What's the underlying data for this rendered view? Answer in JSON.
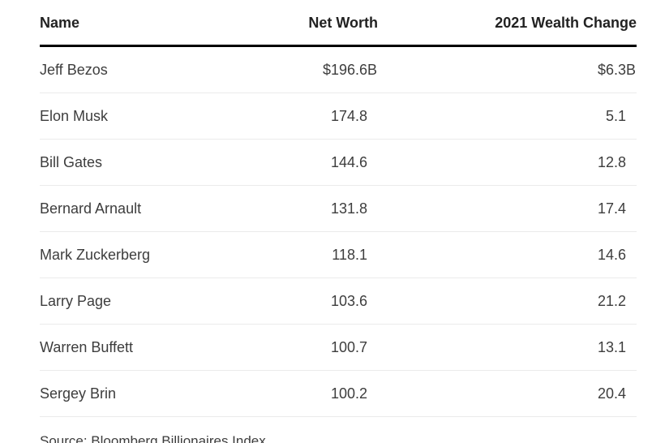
{
  "chart_data": {
    "type": "table",
    "title": "",
    "columns": [
      "Name",
      "Net Worth",
      "2021 Wealth Change"
    ],
    "rows": [
      {
        "name": "Jeff Bezos",
        "net_worth_prefix": "$",
        "net_worth": "196.6",
        "net_worth_suffix": "B",
        "change_prefix": "$",
        "change": "6.3",
        "change_suffix": "B"
      },
      {
        "name": "Elon Musk",
        "net_worth_prefix": "",
        "net_worth": "174.8",
        "net_worth_suffix": "",
        "change_prefix": "",
        "change": "5.1",
        "change_suffix": ""
      },
      {
        "name": "Bill Gates",
        "net_worth_prefix": "",
        "net_worth": "144.6",
        "net_worth_suffix": "",
        "change_prefix": "",
        "change": "12.8",
        "change_suffix": ""
      },
      {
        "name": "Bernard Arnault",
        "net_worth_prefix": "",
        "net_worth": "131.8",
        "net_worth_suffix": "",
        "change_prefix": "",
        "change": "17.4",
        "change_suffix": ""
      },
      {
        "name": "Mark Zuckerberg",
        "net_worth_prefix": "",
        "net_worth": "118.1",
        "net_worth_suffix": "",
        "change_prefix": "",
        "change": "14.6",
        "change_suffix": ""
      },
      {
        "name": "Larry Page",
        "net_worth_prefix": "",
        "net_worth": "103.6",
        "net_worth_suffix": "",
        "change_prefix": "",
        "change": "21.2",
        "change_suffix": ""
      },
      {
        "name": "Warren Buffett",
        "net_worth_prefix": "",
        "net_worth": "100.7",
        "net_worth_suffix": "",
        "change_prefix": "",
        "change": "13.1",
        "change_suffix": ""
      },
      {
        "name": "Sergey Brin",
        "net_worth_prefix": "",
        "net_worth": "100.2",
        "net_worth_suffix": "",
        "change_prefix": "",
        "change": "20.4",
        "change_suffix": ""
      }
    ],
    "units": "billions USD",
    "source": "Source: Bloomberg Billionaires Index"
  },
  "header": {
    "name": "Name",
    "net_worth": "Net Worth",
    "wealth_change": "2021 Wealth Change"
  },
  "source_label": "Source: Bloomberg Billionaires Index",
  "colors": {
    "header_text": "#222222",
    "body_text": "#3d3d3d",
    "header_rule": "#000000",
    "row_divider": "#ebebeb",
    "background": "#ffffff"
  }
}
